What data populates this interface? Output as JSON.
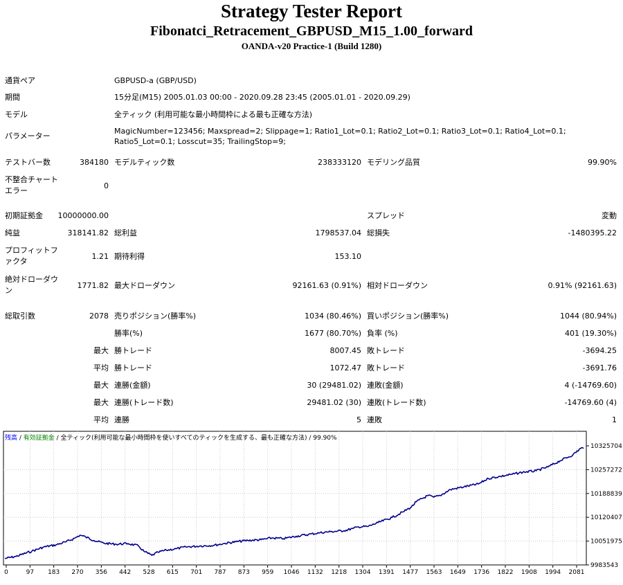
{
  "header": {
    "title": "Strategy Tester Report",
    "subtitle": "Fibonatci_Retracement_GBPUSD_M15_1.00_forward",
    "build": "OANDA-v20 Practice-1 (Build 1280)"
  },
  "info": {
    "pair_label": "通貨ペア",
    "pair_value": "GBPUSD-a (GBP/USD)",
    "period_label": "期間",
    "period_value": "15分足(M15) 2005.01.03 00:00 - 2020.09.28 23:45 (2005.01.01 - 2020.09.29)",
    "model_label": "モデル",
    "model_value": "全ティック (利用可能な最小時間枠による最も正確な方法)",
    "params_label": "パラメーター",
    "params_value": "MagicNumber=123456; Maxspread=2; Slippage=1; Ratio1_Lot=0.1; Ratio2_Lot=0.1; Ratio3_Lot=0.1; Ratio4_Lot=0.1; Ratio5_Lot=0.1; Losscut=35; TrailingStop=9;"
  },
  "stats": {
    "bars_label": "テストバー数",
    "bars_value": "384180",
    "ticks_label": "モデルティック数",
    "ticks_value": "238333120",
    "quality_label": "モデリング品質",
    "quality_value": "99.90%",
    "mismatch_label": "不整合チャートエラー",
    "mismatch_value": "0",
    "deposit_label": "初期証拠金",
    "deposit_value": "10000000.00",
    "spread_label": "スプレッド",
    "spread_value": "変動",
    "net_label": "純益",
    "net_value": "318141.82",
    "gross_profit_label": "総利益",
    "gross_profit_value": "1798537.04",
    "gross_loss_label": "総損失",
    "gross_loss_value": "-1480395.22",
    "pf_label": "プロフィットファクタ",
    "pf_value": "1.21",
    "expected_label": "期待利得",
    "expected_value": "153.10",
    "abs_dd_label": "絶対ドローダウン",
    "abs_dd_value": "1771.82",
    "max_dd_label": "最大ドローダウン",
    "max_dd_value": "92161.63 (0.91%)",
    "rel_dd_label": "相対ドローダウン",
    "rel_dd_value": "0.91% (92161.63)",
    "trades_label": "総取引数",
    "trades_value": "2078",
    "short_label": "売りポジション(勝率%)",
    "short_value": "1034 (80.46%)",
    "long_label": "買いポジション(勝率%)",
    "long_value": "1044 (80.94%)",
    "win_rate_label": "勝率(%)",
    "win_rate_value": "1677 (80.70%)",
    "loss_rate_label": "負率 (%)",
    "loss_rate_value": "401 (19.30%)",
    "largest_prefix": "最大",
    "largest_win_label": "勝トレード",
    "largest_win_value": "8007.45",
    "largest_loss_label": "敗トレード",
    "largest_loss_value": "-3694.25",
    "average_prefix": "平均",
    "avg_win_label": "勝トレード",
    "avg_win_value": "1072.47",
    "avg_loss_label": "敗トレード",
    "avg_loss_value": "-3691.76",
    "max_consec_prefix": "最大",
    "consec_wins_label": "連勝(金額)",
    "consec_wins_value": "30 (29481.02)",
    "consec_losses_label": "連敗(金額)",
    "consec_losses_value": "4 (-14769.60)",
    "max_consec2_prefix": "最大",
    "consec_profit_label": "連勝(トレード数)",
    "consec_profit_value": "29481.02 (30)",
    "consec_loss_label": "連敗(トレード数)",
    "consec_loss_value": "-14769.60 (4)",
    "avg_consec_prefix": "平均",
    "avg_consec_wins_label": "連勝",
    "avg_consec_wins_value": "5",
    "avg_consec_losses_label": "連敗",
    "avg_consec_losses_value": "1"
  },
  "legend": {
    "balance": "残高",
    "sep1": " / ",
    "equity": "有効証拠金",
    "rest": " / 全ティック(利用可能な最小時間枠を使いすべてのティックを生成する、最も正確な方法) / 99.90%",
    "balance_color": "#0000ff",
    "equity_color": "#008000"
  },
  "chart_data": {
    "type": "line",
    "x_ticks": [
      "0",
      "97",
      "183",
      "270",
      "356",
      "442",
      "528",
      "615",
      "701",
      "787",
      "873",
      "959",
      "1046",
      "1132",
      "1218",
      "1304",
      "1391",
      "1477",
      "1563",
      "1649",
      "1736",
      "1822",
      "1908",
      "1994",
      "2081"
    ],
    "y_ticks": [
      "10325704",
      "10257272",
      "10188839",
      "10120407",
      "10051975",
      "9983543"
    ],
    "ylim": [
      9983543,
      10325704
    ],
    "xlim": [
      0,
      2078
    ],
    "line_color": "#00008b",
    "series": [
      {
        "x": [
          0,
          40,
          97,
          140,
          183,
          220,
          250,
          270,
          290,
          320,
          356,
          400,
          442,
          480,
          500,
          528,
          550,
          580,
          615,
          650,
          701,
          750,
          787,
          830,
          873,
          920,
          959,
          1000,
          1046,
          1090,
          1132,
          1170,
          1218,
          1250,
          1270,
          1304,
          1340,
          1391,
          1430,
          1460,
          1477,
          1520,
          1540,
          1563,
          1600,
          1649,
          1700,
          1736,
          1780,
          1822,
          1860,
          1908,
          1950,
          1994,
          2040,
          2070,
          2078
        ],
        "values": [
          10002000,
          10008000,
          10023000,
          10035000,
          10041000,
          10050000,
          10060000,
          10069000,
          10064000,
          10054000,
          10046000,
          10043000,
          10045000,
          10038000,
          10022000,
          10011000,
          10020000,
          10026000,
          10030000,
          10035000,
          10038000,
          10040000,
          10045000,
          10050000,
          10054000,
          10056000,
          10061000,
          10059000,
          10066000,
          10071000,
          10076000,
          10079000,
          10082000,
          10088000,
          10093000,
          10094000,
          10105000,
          10120000,
          10136000,
          10150000,
          10165000,
          10183000,
          10178000,
          10183000,
          10200000,
          10208000,
          10216000,
          10232000,
          10238000,
          10244000,
          10250000,
          10254000,
          10265000,
          10283000,
          10300000,
          10320000,
          10318141
        ]
      }
    ]
  }
}
